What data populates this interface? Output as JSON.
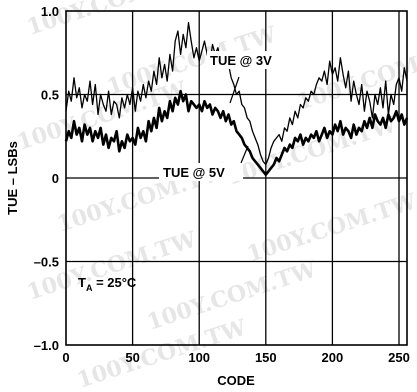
{
  "chart_data": {
    "type": "line",
    "xlabel": "CODE",
    "ylabel": "TUE – LSBs",
    "xlim": [
      0,
      256
    ],
    "ylim": [
      -1.0,
      1.0
    ],
    "x_ticks": [
      0,
      50,
      100,
      150,
      200,
      250
    ],
    "y_ticks": [
      -1.0,
      -0.5,
      0,
      0.5,
      1.0
    ],
    "x_tick_labels": [
      "0",
      "50",
      "100",
      "150",
      "200",
      "250"
    ],
    "y_tick_labels": [
      "–1.0",
      "–0.5",
      "0",
      "0.5",
      "1.0"
    ],
    "grid": true,
    "annotations": {
      "tue_3v": "TUE @ 3V",
      "tue_5v": "TUE @ 5V",
      "temp_main": "T",
      "temp_sub": "A",
      "temp_rest": " = 25°C"
    },
    "watermark": "100Y.COM.TW",
    "series": [
      {
        "name": "TUE @ 3V",
        "stroke_width": 1.3,
        "x": [
          0,
          2,
          4,
          6,
          8,
          10,
          12,
          14,
          16,
          18,
          20,
          22,
          24,
          26,
          28,
          30,
          32,
          34,
          36,
          38,
          40,
          42,
          44,
          46,
          48,
          50,
          52,
          54,
          56,
          58,
          60,
          62,
          64,
          66,
          68,
          70,
          72,
          74,
          76,
          78,
          80,
          82,
          84,
          86,
          88,
          90,
          92,
          94,
          96,
          98,
          100,
          102,
          104,
          106,
          108,
          110,
          112,
          114,
          116,
          118,
          120,
          122,
          124,
          126,
          128,
          130,
          132,
          134,
          136,
          138,
          140,
          142,
          144,
          146,
          148,
          150,
          152,
          154,
          156,
          158,
          160,
          162,
          164,
          166,
          168,
          170,
          172,
          174,
          176,
          178,
          180,
          182,
          184,
          186,
          188,
          190,
          192,
          194,
          196,
          198,
          200,
          202,
          204,
          206,
          208,
          210,
          212,
          214,
          216,
          218,
          220,
          222,
          224,
          226,
          228,
          230,
          232,
          234,
          236,
          238,
          240,
          242,
          244,
          246,
          248,
          250,
          252,
          254,
          256
        ],
        "y": [
          0.4,
          0.52,
          0.46,
          0.6,
          0.48,
          0.54,
          0.42,
          0.5,
          0.46,
          0.58,
          0.44,
          0.56,
          0.38,
          0.5,
          0.44,
          0.4,
          0.52,
          0.38,
          0.46,
          0.44,
          0.36,
          0.48,
          0.42,
          0.5,
          0.44,
          0.54,
          0.4,
          0.52,
          0.46,
          0.56,
          0.48,
          0.58,
          0.52,
          0.64,
          0.56,
          0.72,
          0.6,
          0.68,
          0.58,
          0.74,
          0.64,
          0.82,
          0.88,
          0.74,
          0.86,
          0.78,
          0.93,
          0.82,
          0.72,
          0.78,
          0.7,
          0.76,
          0.82,
          0.74,
          0.68,
          0.8,
          0.74,
          0.78,
          0.7,
          0.74,
          0.66,
          0.68,
          0.6,
          0.56,
          0.5,
          0.52,
          0.44,
          0.42,
          0.36,
          0.34,
          0.28,
          0.24,
          0.2,
          0.14,
          0.1,
          0.08,
          0.12,
          0.18,
          0.22,
          0.24,
          0.26,
          0.22,
          0.3,
          0.28,
          0.36,
          0.32,
          0.4,
          0.36,
          0.44,
          0.42,
          0.48,
          0.46,
          0.52,
          0.5,
          0.56,
          0.6,
          0.58,
          0.64,
          0.56,
          0.7,
          0.62,
          0.66,
          0.58,
          0.72,
          0.62,
          0.54,
          0.64,
          0.46,
          0.58,
          0.5,
          0.44,
          0.56,
          0.4,
          0.52,
          0.46,
          0.36,
          0.5,
          0.44,
          0.54,
          0.42,
          0.58,
          0.38,
          0.5,
          0.44,
          0.56,
          0.6,
          0.52,
          0.66,
          0.58
        ]
      },
      {
        "name": "TUE @ 5V",
        "stroke_width": 2.6,
        "x": [
          0,
          2,
          4,
          6,
          8,
          10,
          12,
          14,
          16,
          18,
          20,
          22,
          24,
          26,
          28,
          30,
          32,
          34,
          36,
          38,
          40,
          42,
          44,
          46,
          48,
          50,
          52,
          54,
          56,
          58,
          60,
          62,
          64,
          66,
          68,
          70,
          72,
          74,
          76,
          78,
          80,
          82,
          84,
          86,
          88,
          90,
          92,
          94,
          96,
          98,
          100,
          102,
          104,
          106,
          108,
          110,
          112,
          114,
          116,
          118,
          120,
          122,
          124,
          126,
          128,
          130,
          132,
          134,
          136,
          138,
          140,
          142,
          144,
          146,
          148,
          150,
          152,
          154,
          156,
          158,
          160,
          162,
          164,
          166,
          168,
          170,
          172,
          174,
          176,
          178,
          180,
          182,
          184,
          186,
          188,
          190,
          192,
          194,
          196,
          198,
          200,
          202,
          204,
          206,
          208,
          210,
          212,
          214,
          216,
          218,
          220,
          222,
          224,
          226,
          228,
          230,
          232,
          234,
          236,
          238,
          240,
          242,
          244,
          246,
          248,
          250,
          252,
          254,
          256
        ],
        "y": [
          0.22,
          0.28,
          0.24,
          0.34,
          0.26,
          0.3,
          0.22,
          0.32,
          0.26,
          0.3,
          0.22,
          0.28,
          0.24,
          0.3,
          0.2,
          0.26,
          0.18,
          0.24,
          0.22,
          0.28,
          0.16,
          0.22,
          0.18,
          0.26,
          0.22,
          0.24,
          0.2,
          0.3,
          0.24,
          0.28,
          0.22,
          0.34,
          0.28,
          0.36,
          0.3,
          0.42,
          0.34,
          0.4,
          0.36,
          0.46,
          0.4,
          0.48,
          0.44,
          0.52,
          0.46,
          0.5,
          0.4,
          0.46,
          0.44,
          0.42,
          0.44,
          0.4,
          0.46,
          0.42,
          0.44,
          0.38,
          0.42,
          0.4,
          0.36,
          0.4,
          0.34,
          0.38,
          0.32,
          0.34,
          0.28,
          0.26,
          0.24,
          0.2,
          0.18,
          0.16,
          0.12,
          0.1,
          0.08,
          0.06,
          0.04,
          0.02,
          0.04,
          0.06,
          0.08,
          0.12,
          0.1,
          0.14,
          0.18,
          0.16,
          0.2,
          0.18,
          0.24,
          0.22,
          0.26,
          0.2,
          0.24,
          0.22,
          0.26,
          0.24,
          0.28,
          0.22,
          0.26,
          0.3,
          0.24,
          0.28,
          0.26,
          0.32,
          0.28,
          0.34,
          0.26,
          0.3,
          0.28,
          0.24,
          0.32,
          0.26,
          0.3,
          0.28,
          0.34,
          0.3,
          0.36,
          0.3,
          0.38,
          0.34,
          0.32,
          0.36,
          0.3,
          0.38,
          0.34,
          0.36,
          0.4,
          0.34,
          0.38,
          0.32,
          0.36
        ]
      }
    ]
  }
}
